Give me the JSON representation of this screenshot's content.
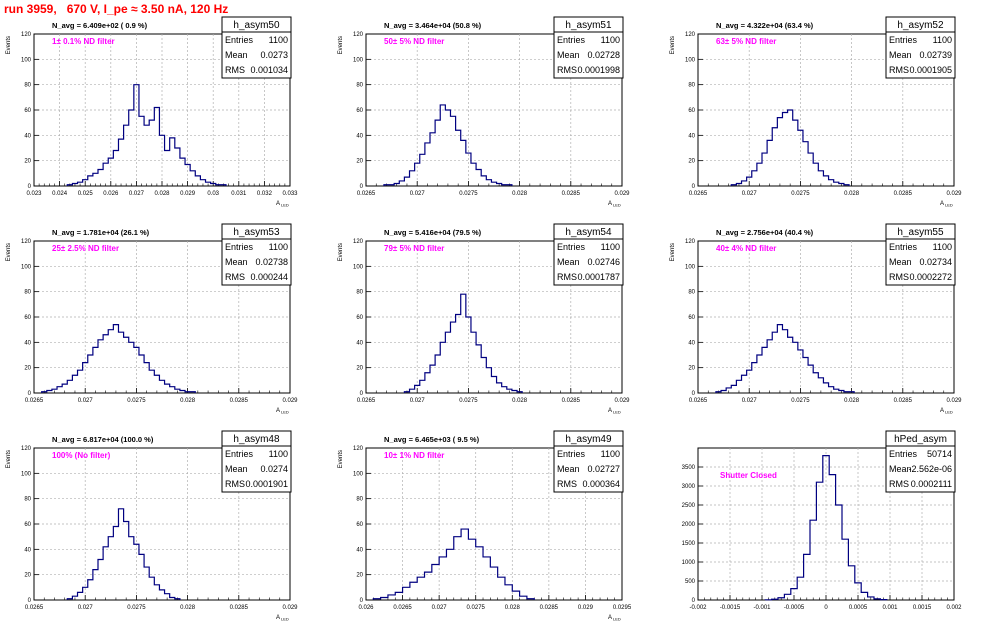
{
  "title": "run 3959,   670 V, I_pe ≈ 3.50 nA, 120 Hz",
  "colors": {
    "title": "#ff0000",
    "annotation": "#ff00ff",
    "histogram": "#000080",
    "grid": "#b0b0b0"
  },
  "chart_data": [
    {
      "type": "histogram",
      "name": "h_asym50",
      "navg": "N_avg = 6.409e+02 ( 0.9 %)",
      "filter": "1± 0.1% ND filter",
      "stats": {
        "entries": "1100",
        "mean": "0.0273",
        "rms": "0.001034"
      },
      "ylabel": "Events",
      "xlabel": "A_LED",
      "xlim": [
        0.023,
        0.033
      ],
      "ylim": [
        0,
        120
      ],
      "xticks": [
        "0.023",
        "0.024",
        "0.025",
        "0.026",
        "0.027",
        "0.028",
        "0.029",
        "0.03",
        "0.031",
        "0.032",
        "0.033"
      ],
      "yticks": [
        "0",
        "20",
        "40",
        "60",
        "80",
        "100",
        "120"
      ],
      "x": [
        0.0244,
        0.0246,
        0.0248,
        0.025,
        0.0252,
        0.0254,
        0.0256,
        0.0258,
        0.026,
        0.0262,
        0.0264,
        0.0266,
        0.0268,
        0.027,
        0.0272,
        0.0274,
        0.0276,
        0.0278,
        0.028,
        0.0282,
        0.0284,
        0.0286,
        0.0288,
        0.029,
        0.0292,
        0.0294,
        0.0296,
        0.0298,
        0.03,
        0.0302,
        0.0304
      ],
      "values": [
        1,
        2,
        3,
        5,
        8,
        10,
        13,
        18,
        22,
        28,
        37,
        48,
        60,
        80,
        55,
        48,
        52,
        62,
        40,
        28,
        38,
        30,
        22,
        17,
        12,
        8,
        5,
        3,
        2,
        1,
        1
      ]
    },
    {
      "type": "histogram",
      "name": "h_asym51",
      "navg": "N_avg = 3.464e+04 (50.8 %)",
      "filter": "50± 5% ND filter",
      "stats": {
        "entries": "1100",
        "mean": "0.02728",
        "rms": "0.0001998"
      },
      "ylabel": "Events",
      "xlabel": "A_LED",
      "xlim": [
        0.0265,
        0.029
      ],
      "ylim": [
        0,
        120
      ],
      "xticks": [
        "0.0265",
        "0.027",
        "0.0275",
        "0.028",
        "0.0285",
        "0.029"
      ],
      "yticks": [
        "0",
        "20",
        "40",
        "60",
        "80",
        "100",
        "120"
      ],
      "x": [
        0.0267,
        0.02675,
        0.0268,
        0.02685,
        0.0269,
        0.02695,
        0.027,
        0.02705,
        0.0271,
        0.02715,
        0.0272,
        0.02725,
        0.0273,
        0.02735,
        0.0274,
        0.02745,
        0.0275,
        0.02755,
        0.0276,
        0.02765,
        0.0277,
        0.02775,
        0.0278,
        0.02785,
        0.0279
      ],
      "values": [
        1,
        1,
        2,
        4,
        7,
        12,
        18,
        25,
        34,
        42,
        52,
        64,
        60,
        55,
        44,
        36,
        26,
        18,
        13,
        8,
        5,
        3,
        2,
        1,
        1
      ]
    },
    {
      "type": "histogram",
      "name": "h_asym52",
      "navg": "N_avg = 4.322e+04 (63.4 %)",
      "filter": "63± 5% ND filter",
      "stats": {
        "entries": "1100",
        "mean": "0.02739",
        "rms": "0.0001905"
      },
      "ylabel": "Events",
      "xlabel": "A_LED",
      "xlim": [
        0.0265,
        0.029
      ],
      "ylim": [
        0,
        120
      ],
      "xticks": [
        "0.0265",
        "0.027",
        "0.0275",
        "0.028",
        "0.0285",
        "0.029"
      ],
      "yticks": [
        "0",
        "20",
        "40",
        "60",
        "80",
        "100",
        "120"
      ],
      "x": [
        0.02685,
        0.0269,
        0.02695,
        0.027,
        0.02705,
        0.0271,
        0.02715,
        0.0272,
        0.02725,
        0.0273,
        0.02735,
        0.0274,
        0.02745,
        0.0275,
        0.02755,
        0.0276,
        0.02765,
        0.0277,
        0.02775,
        0.0278,
        0.02785,
        0.0279,
        0.02795
      ],
      "values": [
        1,
        2,
        4,
        7,
        12,
        18,
        26,
        36,
        46,
        54,
        58,
        60,
        52,
        44,
        35,
        26,
        18,
        12,
        8,
        5,
        3,
        2,
        1
      ]
    },
    {
      "type": "histogram",
      "name": "h_asym53",
      "navg": "N_avg = 1.781e+04 (26.1 %)",
      "filter": "25± 2.5% ND filter",
      "stats": {
        "entries": "1100",
        "mean": "0.02738",
        "rms": "0.000244"
      },
      "ylabel": "Events",
      "xlabel": "A_LED",
      "xlim": [
        0.0265,
        0.029
      ],
      "ylim": [
        0,
        120
      ],
      "xticks": [
        "0.0265",
        "0.027",
        "0.0275",
        "0.028",
        "0.0285",
        "0.029"
      ],
      "yticks": [
        "0",
        "20",
        "40",
        "60",
        "80",
        "100",
        "120"
      ],
      "x": [
        0.0266,
        0.02665,
        0.0267,
        0.02675,
        0.0268,
        0.02685,
        0.0269,
        0.02695,
        0.027,
        0.02705,
        0.0271,
        0.02715,
        0.0272,
        0.02725,
        0.0273,
        0.02735,
        0.0274,
        0.02745,
        0.0275,
        0.02755,
        0.0276,
        0.02765,
        0.0277,
        0.02775,
        0.0278,
        0.02785,
        0.0279,
        0.02795,
        0.028,
        0.02805
      ],
      "values": [
        1,
        2,
        3,
        5,
        7,
        10,
        14,
        18,
        24,
        30,
        36,
        42,
        46,
        50,
        54,
        48,
        44,
        40,
        36,
        30,
        24,
        18,
        14,
        10,
        7,
        5,
        3,
        2,
        1,
        1
      ]
    },
    {
      "type": "histogram",
      "name": "h_asym54",
      "navg": "N_avg = 5.416e+04 (79.5 %)",
      "filter": "79± 5% ND filter",
      "stats": {
        "entries": "1100",
        "mean": "0.02746",
        "rms": "0.0001787"
      },
      "ylabel": "Events",
      "xlabel": "A_LED",
      "xlim": [
        0.0265,
        0.029
      ],
      "ylim": [
        0,
        120
      ],
      "xticks": [
        "0.0265",
        "0.027",
        "0.0275",
        "0.028",
        "0.0285",
        "0.029"
      ],
      "yticks": [
        "0",
        "20",
        "40",
        "60",
        "80",
        "100",
        "120"
      ],
      "x": [
        0.0269,
        0.02695,
        0.027,
        0.02705,
        0.0271,
        0.02715,
        0.0272,
        0.02725,
        0.0273,
        0.02735,
        0.0274,
        0.02745,
        0.0275,
        0.02755,
        0.0276,
        0.02765,
        0.0277,
        0.02775,
        0.0278,
        0.02785,
        0.0279,
        0.02795,
        0.028
      ],
      "values": [
        1,
        3,
        6,
        10,
        16,
        22,
        30,
        40,
        48,
        56,
        62,
        78,
        60,
        48,
        38,
        28,
        20,
        13,
        8,
        5,
        3,
        2,
        1
      ]
    },
    {
      "type": "histogram",
      "name": "h_asym55",
      "navg": "N_avg = 2.756e+04 (40.4 %)",
      "filter": "40± 4% ND filter",
      "stats": {
        "entries": "1100",
        "mean": "0.02734",
        "rms": "0.0002272"
      },
      "ylabel": "Events",
      "xlabel": "A_LED",
      "xlim": [
        0.0265,
        0.029
      ],
      "ylim": [
        0,
        120
      ],
      "xticks": [
        "0.0265",
        "0.027",
        "0.0275",
        "0.028",
        "0.0285",
        "0.029"
      ],
      "yticks": [
        "0",
        "20",
        "40",
        "60",
        "80",
        "100",
        "120"
      ],
      "x": [
        0.0267,
        0.02675,
        0.0268,
        0.02685,
        0.0269,
        0.02695,
        0.027,
        0.02705,
        0.0271,
        0.02715,
        0.0272,
        0.02725,
        0.0273,
        0.02735,
        0.0274,
        0.02745,
        0.0275,
        0.02755,
        0.0276,
        0.02765,
        0.0277,
        0.02775,
        0.0278,
        0.02785,
        0.0279,
        0.02795,
        0.028
      ],
      "values": [
        1,
        2,
        4,
        6,
        10,
        14,
        18,
        24,
        30,
        36,
        42,
        48,
        54,
        50,
        44,
        40,
        34,
        28,
        22,
        16,
        12,
        8,
        5,
        3,
        2,
        1,
        1
      ]
    },
    {
      "type": "histogram",
      "name": "h_asym48",
      "navg": "N_avg = 6.817e+04 (100.0 %)",
      "filter": "100% (No filter)",
      "stats": {
        "entries": "1100",
        "mean": "0.0274",
        "rms": "0.0001901"
      },
      "ylabel": "Events",
      "xlabel": "A_LED",
      "xlim": [
        0.0265,
        0.029
      ],
      "ylim": [
        0,
        120
      ],
      "xticks": [
        "0.0265",
        "0.027",
        "0.0275",
        "0.028",
        "0.0285",
        "0.029"
      ],
      "yticks": [
        "0",
        "20",
        "40",
        "60",
        "80",
        "100",
        "120"
      ],
      "x": [
        0.02685,
        0.0269,
        0.02695,
        0.027,
        0.02705,
        0.0271,
        0.02715,
        0.0272,
        0.02725,
        0.0273,
        0.02735,
        0.0274,
        0.02745,
        0.0275,
        0.02755,
        0.0276,
        0.02765,
        0.0277,
        0.02775,
        0.0278,
        0.02785,
        0.0279
      ],
      "values": [
        1,
        3,
        6,
        10,
        16,
        24,
        32,
        42,
        50,
        58,
        72,
        62,
        50,
        44,
        36,
        26,
        18,
        12,
        8,
        5,
        2,
        1
      ]
    },
    {
      "type": "histogram",
      "name": "h_asym49",
      "navg": "N_avg = 6.465e+03 ( 9.5 %)",
      "filter": "10± 1% ND filter",
      "stats": {
        "entries": "1100",
        "mean": "0.02727",
        "rms": "0.000364"
      },
      "ylabel": "Events",
      "xlabel": "A_LED",
      "xlim": [
        0.026,
        0.0295
      ],
      "ylim": [
        0,
        120
      ],
      "xticks": [
        "0.026",
        "0.0265",
        "0.027",
        "0.0275",
        "0.028",
        "0.0285",
        "0.029",
        "0.0295"
      ],
      "yticks": [
        "0",
        "20",
        "40",
        "60",
        "80",
        "100",
        "120"
      ],
      "x": [
        0.02615,
        0.02625,
        0.02635,
        0.02645,
        0.02655,
        0.02665,
        0.02675,
        0.02685,
        0.02695,
        0.02705,
        0.02715,
        0.02725,
        0.02735,
        0.02745,
        0.02755,
        0.02765,
        0.02775,
        0.02785,
        0.02795,
        0.02805,
        0.02815,
        0.02825
      ],
      "values": [
        1,
        2,
        4,
        6,
        10,
        14,
        18,
        22,
        28,
        34,
        40,
        50,
        56,
        48,
        42,
        34,
        26,
        18,
        12,
        7,
        3,
        1
      ]
    },
    {
      "type": "histogram",
      "name": "hPed_asym",
      "navg": "",
      "filter": "Shutter Closed",
      "stats": {
        "entries": "50714",
        "mean": "-2.562e-06",
        "rms": "0.0002111"
      },
      "ylabel": "",
      "xlabel": "",
      "xlim": [
        -0.002,
        0.002
      ],
      "ylim": [
        0,
        4000
      ],
      "xticks": [
        "-0.002",
        "-0.0015",
        "-0.001",
        "-0.0005",
        "0",
        "0.0005",
        "0.001",
        "0.0015",
        "0.002"
      ],
      "yticks": [
        "0",
        "500",
        "1000",
        "1500",
        "2000",
        "2500",
        "3000",
        "3500"
      ],
      "x": [
        -0.0009,
        -0.0008,
        -0.0007,
        -0.0006,
        -0.0005,
        -0.0004,
        -0.0003,
        -0.0002,
        -0.0001,
        0,
        0.0001,
        0.0002,
        0.0003,
        0.0004,
        0.0005,
        0.0006,
        0.0007,
        0.0008,
        0.0009
      ],
      "values": [
        5,
        20,
        60,
        150,
        300,
        600,
        1200,
        2100,
        3100,
        3800,
        3300,
        2500,
        1600,
        900,
        450,
        200,
        80,
        30,
        10
      ]
    }
  ]
}
